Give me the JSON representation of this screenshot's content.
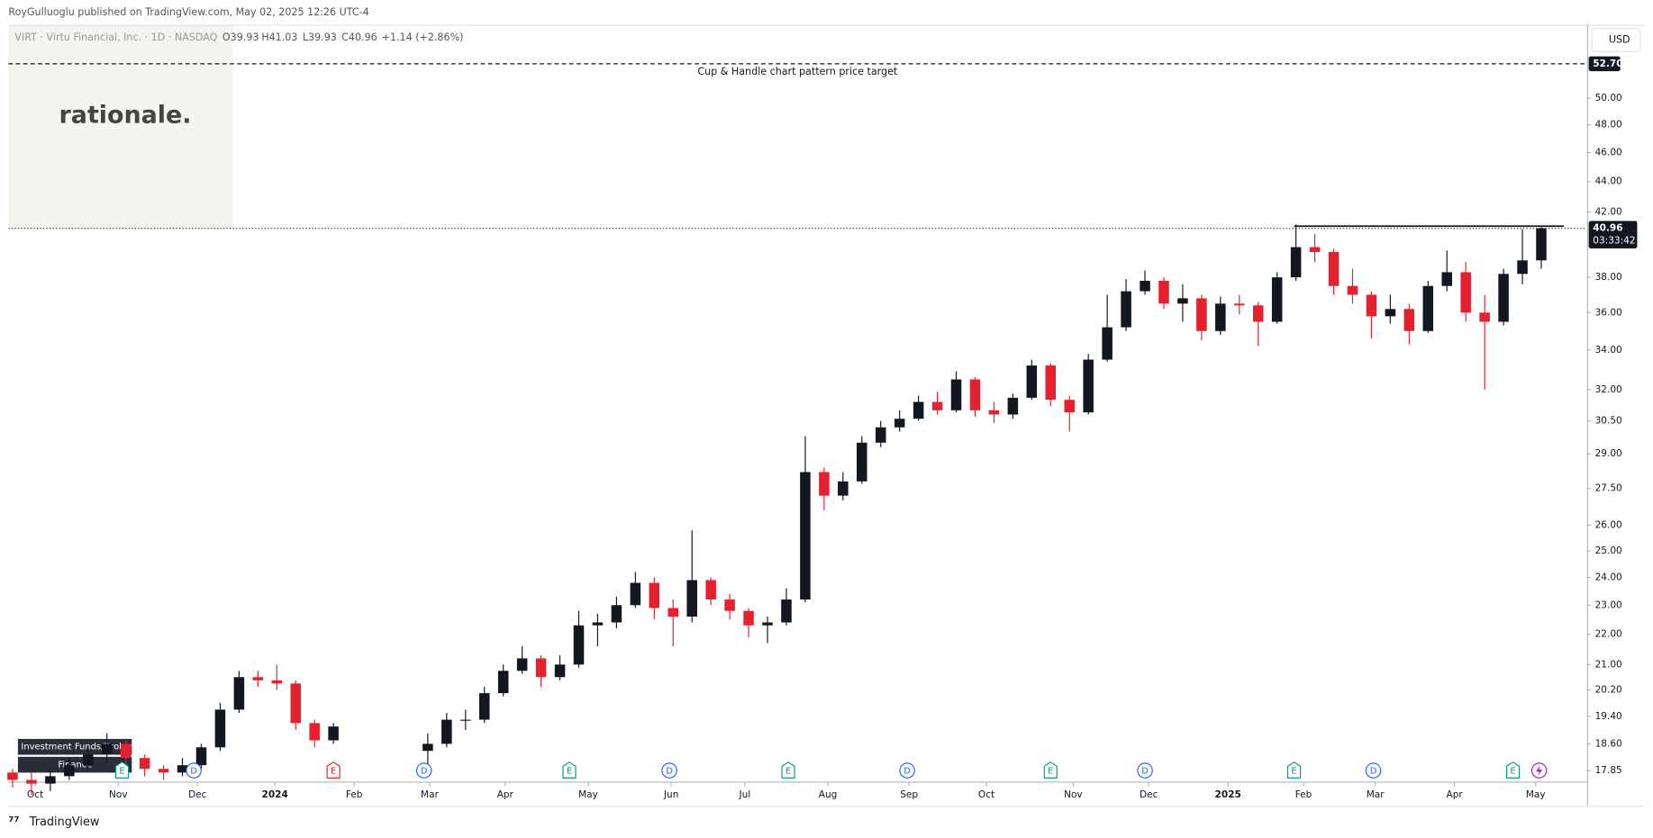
{
  "header": {
    "published": "RoyGulluoglu published on TradingView.com, May 02, 2025 12:26 UTC-4",
    "symbol": "VIRT · Virtu Financial, Inc. · 1D · NASDAQ",
    "open": "O39.93",
    "high": "H41.03",
    "low": "L39.93",
    "close": "C40.96",
    "change": "+1.14 (+2.86%)"
  },
  "logo": "rationale.",
  "currency": "USD",
  "badges": [
    "Investment Funds/Brokers",
    "Finance"
  ],
  "footer": "TradingView",
  "chart_data": {
    "type": "candlestick",
    "log_scale": true,
    "up_color": "#131722",
    "down_color": "#e5202f",
    "xlim": [
      -0.22,
      83.4
    ],
    "ylim": [
      17.54,
      55.9
    ],
    "xticks": [
      {
        "value": 1.2,
        "label": "Oct"
      },
      {
        "value": 5.6,
        "label": "Nov"
      },
      {
        "value": 9.8,
        "label": "Dec"
      },
      {
        "value": 13.9,
        "label": "2024"
      },
      {
        "value": 18.1,
        "label": "Feb"
      },
      {
        "value": 22.1,
        "label": "Mar"
      },
      {
        "value": 26.1,
        "label": "Apr"
      },
      {
        "value": 30.5,
        "label": "May"
      },
      {
        "value": 34.9,
        "label": "Jun"
      },
      {
        "value": 38.8,
        "label": "Jul"
      },
      {
        "value": 43.2,
        "label": "Aug"
      },
      {
        "value": 47.5,
        "label": "Sep"
      },
      {
        "value": 51.6,
        "label": "Oct"
      },
      {
        "value": 56.2,
        "label": "Nov"
      },
      {
        "value": 60.2,
        "label": "Dec"
      },
      {
        "value": 64.4,
        "label": "2025"
      },
      {
        "value": 68.4,
        "label": "Feb"
      },
      {
        "value": 72.2,
        "label": "Mar"
      },
      {
        "value": 76.4,
        "label": "Apr"
      },
      {
        "value": 80.7,
        "label": "May"
      }
    ],
    "yticks": [
      {
        "value": 50,
        "label": "50.00"
      },
      {
        "value": 48,
        "label": "48.00"
      },
      {
        "value": 46,
        "label": "46.00"
      },
      {
        "value": 44,
        "label": "44.00"
      },
      {
        "value": 42,
        "label": "42.00"
      },
      {
        "value": 38,
        "label": "38.00"
      },
      {
        "value": 36,
        "label": "36.00"
      },
      {
        "value": 34,
        "label": "34.00"
      },
      {
        "value": 32,
        "label": "32.00"
      },
      {
        "value": 30.5,
        "label": "30.50"
      },
      {
        "value": 29,
        "label": "29.00"
      },
      {
        "value": 27.5,
        "label": "27.50"
      },
      {
        "value": 26,
        "label": "26.00"
      },
      {
        "value": 25,
        "label": "25.00"
      },
      {
        "value": 24,
        "label": "24.00"
      },
      {
        "value": 23,
        "label": "23.00"
      },
      {
        "value": 22,
        "label": "22.00"
      },
      {
        "value": 21,
        "label": "21.00"
      },
      {
        "value": 20.2,
        "label": "20.20"
      },
      {
        "value": 19.4,
        "label": "19.40"
      },
      {
        "value": 18.6,
        "label": "18.60"
      },
      {
        "value": 17.85,
        "label": "17.85"
      }
    ],
    "target": {
      "value": 52.7,
      "label": "52.70",
      "text": "Cup & Handle chart pattern price target"
    },
    "resistance": 41.1,
    "last_price": {
      "value": 40.96,
      "label": "40.96",
      "countdown": "03:33:42"
    },
    "events": [
      {
        "label": "E",
        "x": 5.8
      },
      {
        "label": "D",
        "x": 9.6
      },
      {
        "label": "E",
        "x": 17.0
      },
      {
        "label": "D",
        "x": 21.8
      },
      {
        "label": "E",
        "x": 29.5
      },
      {
        "label": "D",
        "x": 34.8
      },
      {
        "label": "E",
        "x": 41.1
      },
      {
        "label": "D",
        "x": 47.4
      },
      {
        "label": "E",
        "x": 55.0
      },
      {
        "label": "D",
        "x": 60.0
      },
      {
        "label": "E",
        "x": 67.9
      },
      {
        "label": "D",
        "x": 72.1
      },
      {
        "label": "E",
        "x": 79.5
      }
    ],
    "series": [
      {
        "name": "VIRT",
        "open": [
          17.8,
          17.6,
          17.5,
          17.7,
          18.0,
          18.3,
          18.6,
          18.2,
          17.9,
          17.8,
          18.0,
          18.5,
          19.6,
          20.6,
          20.5,
          20.4,
          19.2,
          18.7,
          null,
          null,
          null,
          null,
          18.4,
          18.6,
          19.3,
          19.3,
          20.1,
          20.8,
          21.2,
          20.6,
          21.0,
          22.3,
          22.4,
          23.0,
          23.8,
          22.9,
          22.6,
          23.9,
          23.2,
          22.8,
          22.3,
          22.4,
          23.2,
          28.2,
          27.2,
          27.8,
          29.5,
          30.2,
          30.6,
          31.4,
          31.0,
          32.5,
          31.0,
          30.8,
          31.6,
          33.2,
          31.5,
          30.9,
          33.5,
          35.2,
          37.2,
          37.8,
          36.5,
          36.8,
          35.0,
          36.5,
          36.4,
          35.5,
          38.0,
          39.8,
          39.5,
          37.5,
          37.0,
          35.8,
          36.2,
          35.0,
          37.5,
          38.3,
          36.0,
          35.5,
          38.2,
          39.0
        ],
        "high": [
          17.9,
          17.8,
          17.9,
          18.2,
          18.5,
          18.9,
          18.7,
          18.3,
          18.0,
          18.2,
          18.6,
          19.8,
          20.8,
          20.8,
          21.0,
          20.5,
          19.3,
          19.2,
          null,
          null,
          null,
          null,
          18.9,
          19.5,
          19.6,
          20.3,
          21.0,
          21.6,
          21.3,
          21.3,
          22.8,
          22.7,
          23.3,
          24.2,
          24.0,
          23.2,
          25.8,
          24.0,
          23.4,
          22.9,
          22.6,
          23.6,
          29.8,
          28.4,
          28.2,
          29.8,
          30.5,
          31.0,
          31.7,
          31.9,
          32.9,
          32.6,
          31.4,
          31.8,
          33.5,
          33.3,
          31.7,
          33.8,
          37.0,
          37.9,
          38.4,
          38.0,
          37.6,
          37.0,
          36.9,
          37.0,
          36.6,
          38.3,
          41.2,
          40.6,
          39.7,
          38.5,
          37.2,
          37.0,
          36.5,
          37.8,
          39.6,
          38.9,
          37.0,
          38.5,
          40.9,
          41.03
        ],
        "low": [
          17.4,
          17.2,
          17.3,
          17.6,
          17.9,
          18.1,
          18.0,
          17.7,
          17.6,
          17.7,
          17.9,
          18.4,
          19.5,
          20.3,
          20.2,
          19.0,
          18.5,
          18.6,
          null,
          null,
          null,
          null,
          17.9,
          18.5,
          19.0,
          19.2,
          20.0,
          20.7,
          20.3,
          20.5,
          20.9,
          21.6,
          22.2,
          22.9,
          22.5,
          21.6,
          22.4,
          23.0,
          22.5,
          21.9,
          21.7,
          22.3,
          23.1,
          26.6,
          27.0,
          27.7,
          29.3,
          30.0,
          30.5,
          30.8,
          30.9,
          30.7,
          30.4,
          30.6,
          31.5,
          31.2,
          30.0,
          30.8,
          33.4,
          35.0,
          37.0,
          36.2,
          35.5,
          34.5,
          34.8,
          35.9,
          34.2,
          35.4,
          37.8,
          38.9,
          37.0,
          36.5,
          34.6,
          35.4,
          34.3,
          34.9,
          37.2,
          35.5,
          32.0,
          35.3,
          37.6,
          38.5
        ],
        "close": [
          17.6,
          17.5,
          17.7,
          18.0,
          18.3,
          18.6,
          18.2,
          17.9,
          17.8,
          18.0,
          18.5,
          19.6,
          20.6,
          20.5,
          20.4,
          19.2,
          18.7,
          19.1,
          null,
          null,
          null,
          null,
          18.6,
          19.3,
          19.3,
          20.1,
          20.8,
          21.2,
          20.6,
          21.0,
          22.3,
          22.4,
          23.0,
          23.8,
          22.9,
          22.6,
          23.9,
          23.2,
          22.8,
          22.3,
          22.4,
          23.2,
          28.2,
          27.2,
          27.8,
          29.5,
          30.2,
          30.6,
          31.4,
          31.0,
          32.5,
          31.0,
          30.8,
          31.6,
          33.2,
          31.5,
          30.9,
          33.5,
          35.2,
          37.2,
          37.8,
          36.5,
          36.8,
          35.0,
          36.5,
          36.4,
          35.5,
          38.0,
          39.8,
          39.5,
          37.5,
          37.0,
          35.8,
          36.2,
          35.0,
          37.5,
          38.3,
          36.0,
          35.5,
          38.2,
          39.0,
          40.96
        ]
      }
    ]
  }
}
